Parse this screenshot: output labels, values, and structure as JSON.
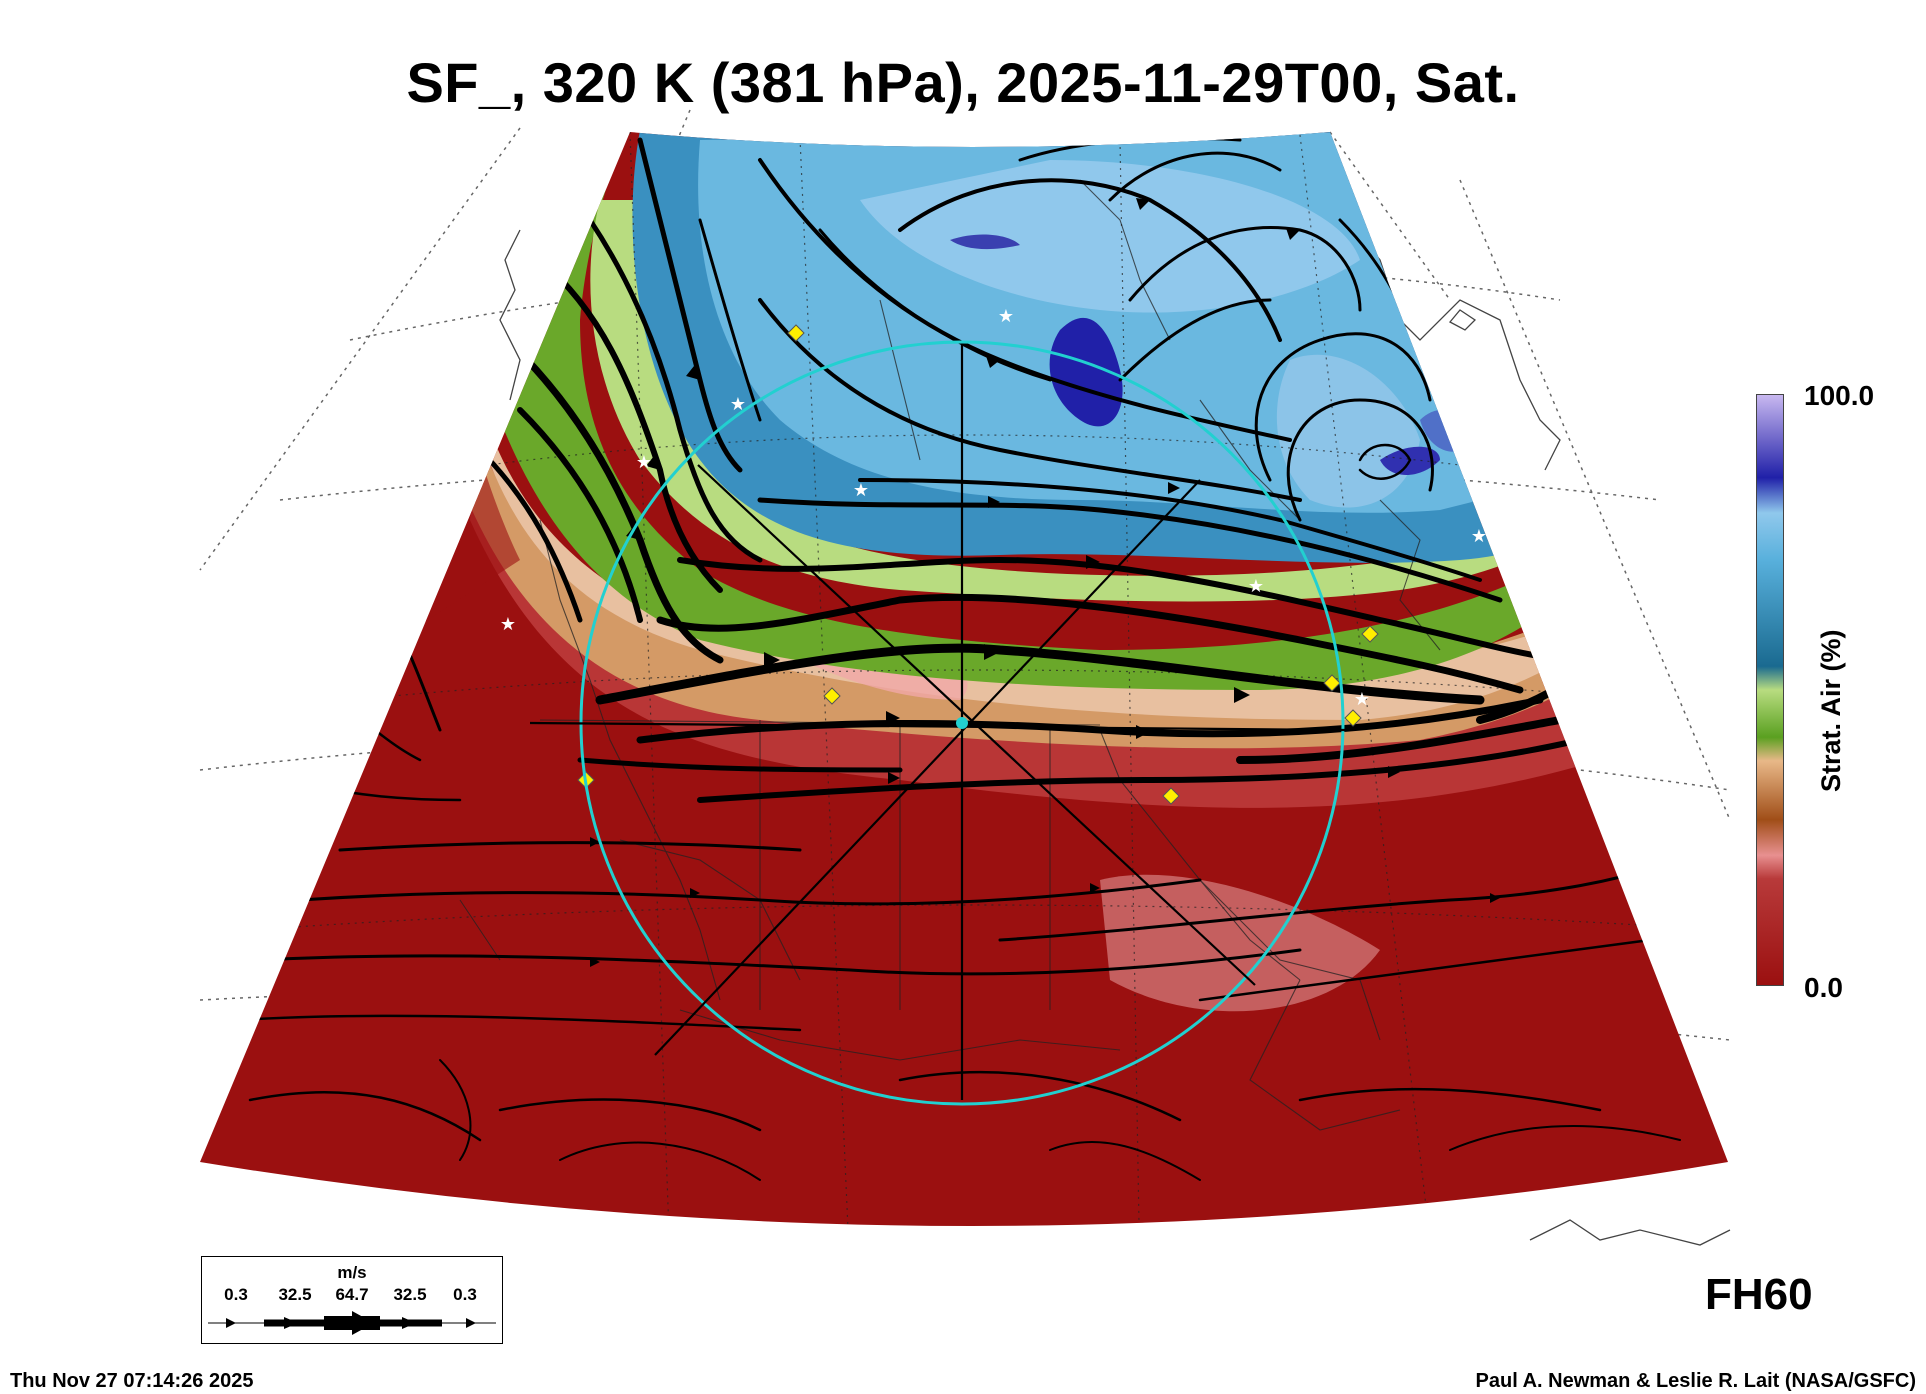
{
  "title": "SF_, 320 K (381 hPa), 2025-11-29T00, Sat.",
  "colorbar": {
    "label": "Strat. Air (%)",
    "max_label": "100.0",
    "min_label": "0.0",
    "colors": [
      "#9b1010",
      "#b83a3a",
      "#e89090",
      "#b05a1c",
      "#e8b888",
      "#5aa020",
      "#b8dc80",
      "#1a7aa0",
      "#58b0dc",
      "#90c8ec",
      "#2020a8",
      "#c8b8f0"
    ]
  },
  "forecast_hour": "FH60",
  "vector_legend": {
    "unit": "m/s",
    "values": [
      "0.3",
      "32.5",
      "64.7",
      "32.5",
      "0.3"
    ]
  },
  "footer": {
    "timestamp": "Thu Nov 27 07:14:26 2025",
    "credit": "Paul A. Newman & Leslie R. Lait (NASA/GSFC)"
  },
  "map": {
    "projection_center_color": "#22d0d0",
    "marker_colors": {
      "diamond": "#ffee00",
      "star": "#ffffff"
    }
  }
}
